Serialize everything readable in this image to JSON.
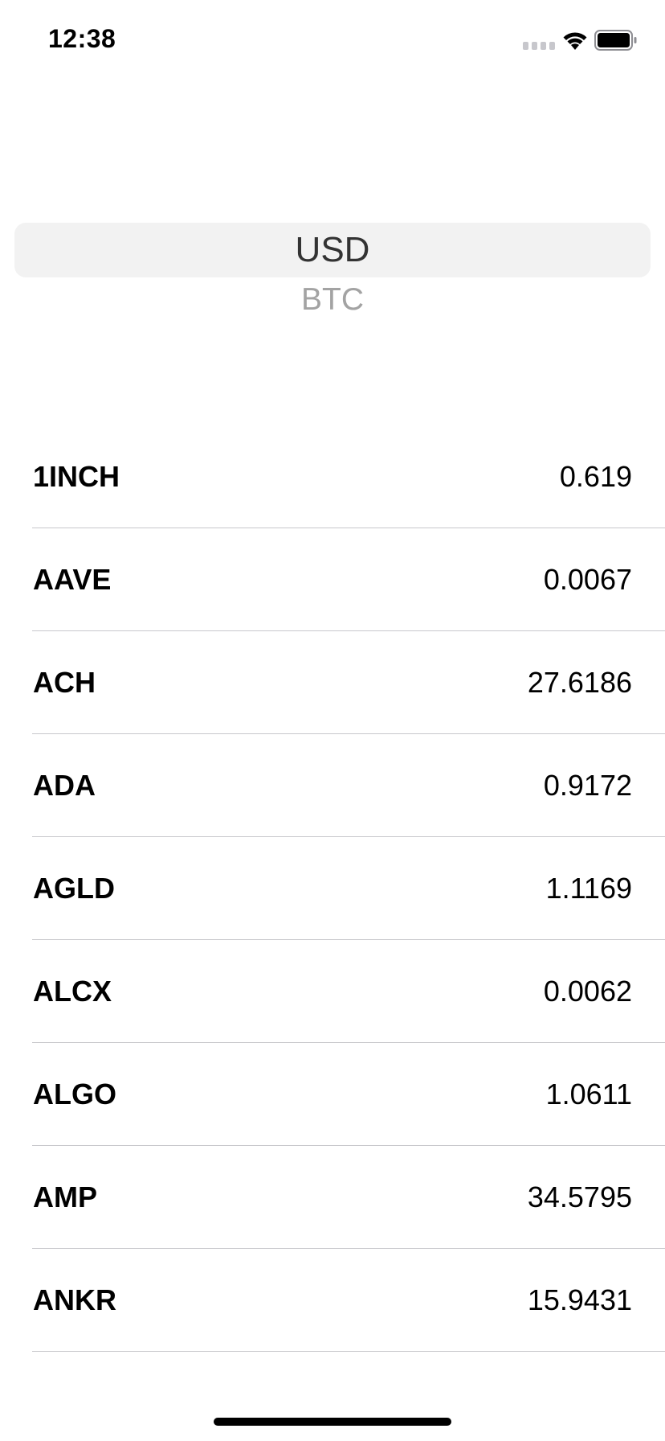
{
  "status_bar": {
    "time": "12:38",
    "icons": [
      "signal-icon",
      "wifi-icon",
      "battery-icon"
    ]
  },
  "picker": {
    "options": [
      "USD",
      "BTC"
    ],
    "selected": "USD",
    "highlight_color": "#f2f2f2"
  },
  "list": {
    "items": [
      {
        "symbol": "1INCH",
        "value": "0.619"
      },
      {
        "symbol": "AAVE",
        "value": "0.0067"
      },
      {
        "symbol": "ACH",
        "value": "27.6186"
      },
      {
        "symbol": "ADA",
        "value": "0.9172"
      },
      {
        "symbol": "AGLD",
        "value": "1.1169"
      },
      {
        "symbol": "ALCX",
        "value": "0.0062"
      },
      {
        "symbol": "ALGO",
        "value": "1.0611"
      },
      {
        "symbol": "AMP",
        "value": "34.5795"
      },
      {
        "symbol": "ANKR",
        "value": "15.9431"
      }
    ]
  }
}
